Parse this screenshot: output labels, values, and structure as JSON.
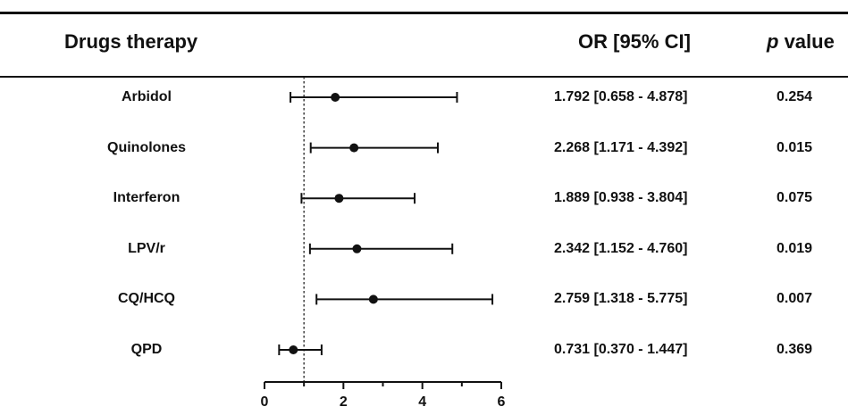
{
  "header": {
    "drug_col": "Drugs therapy",
    "or_col": "OR [95% CI]",
    "p_col_italic": "p",
    "p_col_rest": " value"
  },
  "chart_data": {
    "type": "forest",
    "title": "",
    "xlabel": "",
    "xlim": [
      0,
      6
    ],
    "xticks": [
      0,
      2,
      4,
      6
    ],
    "reference_line": 1,
    "rows": [
      {
        "drug": "Arbidol",
        "or": 1.792,
        "lower": 0.658,
        "upper": 4.878,
        "or_text": "1.792 [0.658 - 4.878]",
        "p": "0.254"
      },
      {
        "drug": "Quinolones",
        "or": 2.268,
        "lower": 1.171,
        "upper": 4.392,
        "or_text": "2.268 [1.171 - 4.392]",
        "p": "0.015"
      },
      {
        "drug": "Interferon",
        "or": 1.889,
        "lower": 0.938,
        "upper": 3.804,
        "or_text": "1.889 [0.938 - 3.804]",
        "p": "0.075"
      },
      {
        "drug": "LPV/r",
        "or": 2.342,
        "lower": 1.152,
        "upper": 4.76,
        "or_text": "2.342 [1.152 - 4.760]",
        "p": "0.019"
      },
      {
        "drug": "CQ/HCQ",
        "or": 2.759,
        "lower": 1.318,
        "upper": 5.775,
        "or_text": "2.759 [1.318 - 5.775]",
        "p": "0.007"
      },
      {
        "drug": "QPD",
        "or": 0.731,
        "lower": 0.37,
        "upper": 1.447,
        "or_text": "0.731 [0.370 - 1.447]",
        "p": "0.369"
      }
    ]
  }
}
